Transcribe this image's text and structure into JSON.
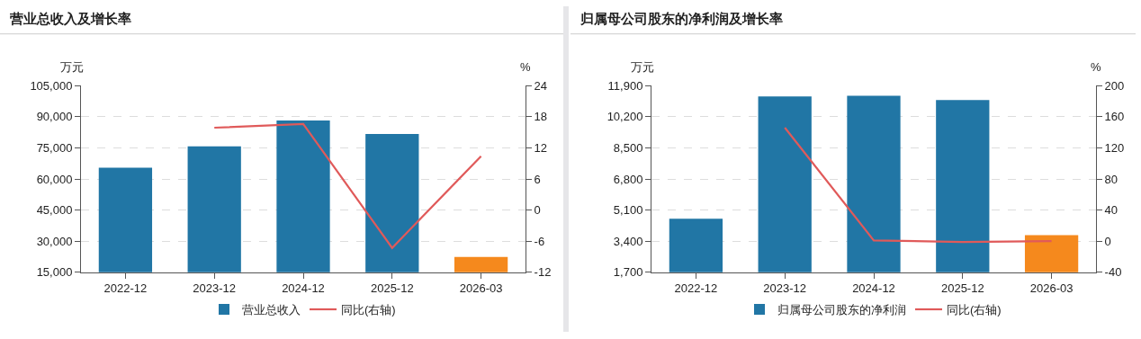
{
  "chart_data": [
    {
      "type": "bar",
      "title": "营业总收入及增长率",
      "ylabel": "万元",
      "y2label": "%",
      "categories": [
        "2022-12",
        "2023-12",
        "2024-12",
        "2025-12",
        "2026-03"
      ],
      "series": [
        {
          "name": "营业总收入",
          "color": "#2176a5",
          "colors": [
            "#2176a5",
            "#2176a5",
            "#2176a5",
            "#2176a5",
            "#f5891d"
          ],
          "values": [
            65400,
            75700,
            88200,
            81700,
            22400
          ]
        },
        {
          "name": "同比(右轴)",
          "type": "line",
          "axis": "y2",
          "color": "#e05a5a",
          "values": [
            null,
            15.9,
            16.6,
            -7.3,
            10.4
          ]
        }
      ],
      "ylim": [
        15000,
        105000
      ],
      "yticks": [
        {
          "value": 15000,
          "label": "15,000"
        },
        {
          "value": 30000,
          "label": "30,000"
        },
        {
          "value": 45000,
          "label": "45,000"
        },
        {
          "value": 60000,
          "label": "60,000"
        },
        {
          "value": 75000,
          "label": "75,000"
        },
        {
          "value": 90000,
          "label": "90,000"
        },
        {
          "value": 105000,
          "label": "105,000"
        }
      ],
      "y2lim": [
        -12,
        24
      ],
      "y2ticks": [
        -12,
        -6,
        0,
        6,
        12,
        18,
        24
      ],
      "grid": "y",
      "legend": "bottom",
      "marker": "none",
      "line_style": "solid"
    },
    {
      "type": "bar",
      "title": "归属母公司股东的净利润及增长率",
      "ylabel": "万元",
      "y2label": "%",
      "categories": [
        "2022-12",
        "2023-12",
        "2024-12",
        "2025-12",
        "2026-03"
      ],
      "series": [
        {
          "name": "归属母公司股东的净利润",
          "color": "#2176a5",
          "colors": [
            "#2176a5",
            "#2176a5",
            "#2176a5",
            "#2176a5",
            "#f5891d"
          ],
          "values": [
            4630,
            11310,
            11350,
            11120,
            3730
          ]
        },
        {
          "name": "同比(右轴)",
          "type": "line",
          "axis": "y2",
          "color": "#e05a5a",
          "values": [
            null,
            146,
            1,
            -1,
            0
          ]
        }
      ],
      "ylim": [
        1700,
        11900
      ],
      "yticks": [
        {
          "value": 1700,
          "label": "1,700"
        },
        {
          "value": 3400,
          "label": "3,400"
        },
        {
          "value": 5100,
          "label": "5,100"
        },
        {
          "value": 6800,
          "label": "6,800"
        },
        {
          "value": 8500,
          "label": "8,500"
        },
        {
          "value": 10200,
          "label": "10,200"
        },
        {
          "value": 11900,
          "label": "11,900"
        }
      ],
      "y2lim": [
        -40,
        200
      ],
      "y2ticks": [
        -40,
        0,
        40,
        80,
        120,
        160,
        200
      ],
      "grid": "y",
      "legend": "bottom",
      "marker": "none",
      "line_style": "solid"
    }
  ]
}
